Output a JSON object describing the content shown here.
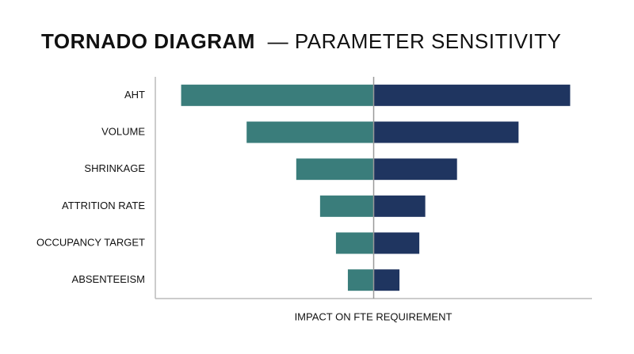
{
  "chart_data": {
    "type": "tornado",
    "title": [
      "TORNADO DIAGRAM",
      "— PARAMETER SENSITIVITY"
    ],
    "x_label": "IMPACT ON FTE REQUIREMENT",
    "categories": [
      "AHT",
      "VOLUME",
      "SHRINKAGE",
      "ATTRITION RATE",
      "OCCUPANCY TARGET",
      "ABSENTEEISM"
    ],
    "series": [
      {
        "color": "#3a7d7b",
        "values": [
          -97,
          -64,
          -39,
          -27,
          -19,
          -13
        ]
      },
      {
        "color": "#1f3560",
        "values": [
          99,
          73,
          42,
          26,
          23,
          13
        ]
      }
    ],
    "xlim": [
      -110,
      110
    ]
  }
}
